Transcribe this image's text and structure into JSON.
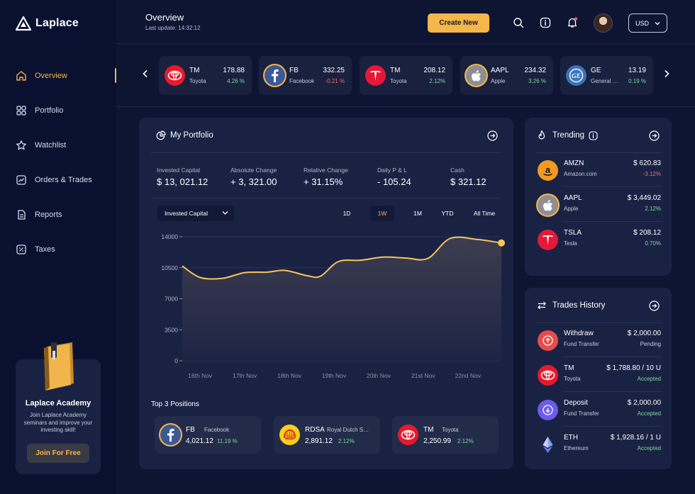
{
  "app": {
    "name": "Laplace"
  },
  "sidebar": {
    "items": [
      {
        "label": "Overview",
        "icon": "home-icon",
        "active": true
      },
      {
        "label": "Portfolio",
        "icon": "grid-icon"
      },
      {
        "label": "Watchlist",
        "icon": "star-icon"
      },
      {
        "label": "Orders & Trades",
        "icon": "chart-line-icon"
      },
      {
        "label": "Reports",
        "icon": "document-icon"
      },
      {
        "label": "Taxes",
        "icon": "percent-icon"
      }
    ],
    "academy": {
      "title": "Laplace Academy",
      "text": "Join Laplace Academy seminars and improve your investing skill!",
      "button": "Join For Free"
    }
  },
  "header": {
    "title": "Overview",
    "subtitle": "Last update: 14:32:12",
    "create_button": "Create New",
    "currency": "USD"
  },
  "ticker": [
    {
      "symbol": "TM",
      "name": "Toyota",
      "price": "178.88",
      "change": "4.26 %",
      "trend": "up",
      "logo": "toyota-logo-icon",
      "color": "#e8192c"
    },
    {
      "symbol": "FB",
      "name": "Facebook",
      "price": "332.25",
      "change": "-0.21 %",
      "trend": "down",
      "logo": "facebook-logo-icon",
      "color": "#3b5998"
    },
    {
      "symbol": "TM",
      "name": "Toyota",
      "price": "208.12",
      "change": "2.12%",
      "trend": "up",
      "logo": "tesla-logo-icon",
      "color": "#e31937"
    },
    {
      "symbol": "AAPL",
      "name": "Apple",
      "price": "234.32",
      "change": "3.26 %",
      "trend": "up",
      "logo": "apple-logo-icon",
      "color": "#8e8e93"
    },
    {
      "symbol": "GE",
      "name": "General Electric",
      "price": "13.19",
      "change": "0.19 %",
      "trend": "up",
      "logo": "ge-logo-icon",
      "color": "#3b73b9"
    }
  ],
  "portfolio": {
    "title": "My Portfolio",
    "stats": [
      {
        "label": "Invested Capital",
        "value": "$ 13, 021.12",
        "tone": "neutral"
      },
      {
        "label": "Absolute Change",
        "value": "+ 3, 321.00",
        "tone": "up"
      },
      {
        "label": "Relative Change",
        "value": "+ 31.15%",
        "tone": "up"
      },
      {
        "label": "Daily P & L",
        "value": "- 105.24",
        "tone": "down"
      },
      {
        "label": "Cash",
        "value": "$ 321.12",
        "tone": "neutral"
      }
    ],
    "select": "Invested Capital",
    "ranges": [
      "1D",
      "1W",
      "1M",
      "YTD",
      "All Time"
    ],
    "active_range": "1W"
  },
  "chart_data": {
    "type": "area",
    "categories": [
      "16th Nov",
      "17th Nov",
      "18th Nov",
      "19th Nov",
      "20th Nov",
      "21st Nov",
      "22nd Nov"
    ],
    "y_ticks": [
      0,
      3500,
      7000,
      10500,
      14000
    ],
    "ylim": [
      0,
      14000
    ],
    "line_color": "#f5c55a",
    "points": [
      {
        "x": 15.6,
        "y": 10700
      },
      {
        "x": 16.0,
        "y": 9400
      },
      {
        "x": 16.5,
        "y": 9300
      },
      {
        "x": 17.0,
        "y": 9950
      },
      {
        "x": 17.5,
        "y": 10000
      },
      {
        "x": 17.9,
        "y": 10200
      },
      {
        "x": 18.4,
        "y": 9600
      },
      {
        "x": 18.7,
        "y": 9550
      },
      {
        "x": 19.1,
        "y": 11200
      },
      {
        "x": 19.6,
        "y": 11350
      },
      {
        "x": 20.1,
        "y": 11700
      },
      {
        "x": 20.6,
        "y": 11600
      },
      {
        "x": 21.1,
        "y": 11550
      },
      {
        "x": 21.6,
        "y": 13800
      },
      {
        "x": 22.2,
        "y": 13700
      },
      {
        "x": 22.75,
        "y": 13300
      }
    ]
  },
  "top_positions": {
    "title": "Top 3 Positions",
    "items": [
      {
        "symbol": "FB",
        "name": "Facebook",
        "price": "4,021.12",
        "change": "11.19 %",
        "logo": "facebook-logo-icon",
        "color": "#3b5998"
      },
      {
        "symbol": "RDSA",
        "name": "Royal Dutch Shell",
        "price": "2,891.12",
        "change": "2.12%",
        "logo": "shell-logo-icon",
        "color": "#f7d117"
      },
      {
        "symbol": "TM",
        "name": "Toyota",
        "price": "2,250.99",
        "change": "2.12%",
        "logo": "toyota-logo-icon",
        "color": "#e8192c"
      }
    ]
  },
  "trending": {
    "title": "Trending",
    "items": [
      {
        "symbol": "AMZN",
        "name": "Amazon.com",
        "price": "$ 620.83",
        "change": "-3.12%",
        "trend": "down",
        "logo": "amazon-logo-icon",
        "color": "#f29a1f"
      },
      {
        "symbol": "AAPL",
        "name": "Apple",
        "price": "$ 3,449.02",
        "change": "2.12%",
        "trend": "up",
        "logo": "apple-logo-icon",
        "color": "#8e8e93"
      },
      {
        "symbol": "TSLA",
        "name": "Tesla",
        "price": "$ 208.12",
        "change": "0.70%",
        "trend": "up",
        "logo": "tesla-logo-icon",
        "color": "#e31937"
      }
    ]
  },
  "trades": {
    "title": "Trades History",
    "items": [
      {
        "title": "Withdraw",
        "sub": "Fund Transfer",
        "amount": "$ 2,000.00",
        "status": "Pending",
        "tone": "muted",
        "logo": "withdraw-icon",
        "color": "#e74c4c"
      },
      {
        "title": "TM",
        "sub": "Toyota",
        "amount": "$ 1,788.80 / 10 U",
        "status": "Accepted",
        "tone": "up",
        "logo": "toyota-logo-icon",
        "color": "#e8192c"
      },
      {
        "title": "Deposit",
        "sub": "Fund Transfer",
        "amount": "$ 2,000.00",
        "status": "Accepted",
        "tone": "up",
        "logo": "deposit-icon",
        "color": "#6c5ce7"
      },
      {
        "title": "ETH",
        "sub": "Ethereum",
        "amount": "$ 1,928.16 / 1 U",
        "status": "Accepted",
        "tone": "up",
        "logo": "ethereum-logo-icon",
        "color": "#627eea"
      }
    ]
  }
}
